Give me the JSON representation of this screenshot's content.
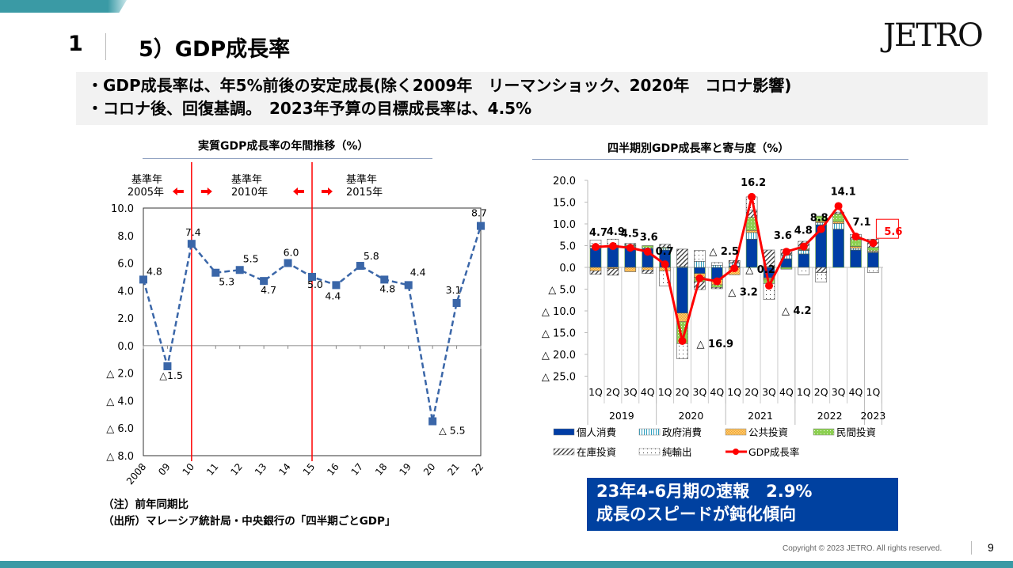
{
  "header": {
    "section_number": "1",
    "title": "5）GDP成長率",
    "logo": "JETRO"
  },
  "summary": {
    "line1": "・GDP成長率は、年5%前後の安定成長(除く2009年　リーマンショック、2020年　コロナ影響)",
    "line2": "・コロナ後、回復基調。　2023年予算の目標成長率は、4.5%"
  },
  "chart_data": [
    {
      "type": "line",
      "title": "実質GDP成長率の年間推移（%）",
      "categories": [
        "2008",
        "09",
        "10",
        "11",
        "12",
        "13",
        "14",
        "15",
        "16",
        "17",
        "18",
        "19",
        "20",
        "21",
        "22"
      ],
      "values": [
        4.8,
        -1.5,
        7.4,
        5.3,
        5.5,
        4.7,
        6.0,
        5.0,
        4.4,
        5.8,
        4.8,
        4.4,
        -5.5,
        3.1,
        8.7
      ],
      "data_labels": [
        "4.8",
        "△1.5",
        "7.4",
        "5.3",
        "5.5",
        "4.7",
        "6.0",
        "5.0",
        "4.4",
        "5.8",
        "4.8",
        "4.4",
        "△ 5.5",
        "3.1",
        "8.7"
      ],
      "ylim": [
        -8,
        10
      ],
      "yticks": [
        {
          "v": 10,
          "t": "10.0"
        },
        {
          "v": 8,
          "t": "8.0"
        },
        {
          "v": 6,
          "t": "6.0"
        },
        {
          "v": 4,
          "t": "4.0"
        },
        {
          "v": 2,
          "t": "2.0"
        },
        {
          "v": 0,
          "t": "0.0"
        },
        {
          "v": -2,
          "t": "△ 2.0"
        },
        {
          "v": -4,
          "t": "△ 4.0"
        },
        {
          "v": -6,
          "t": "△ 6.0"
        },
        {
          "v": -8,
          "t": "△ 8.0"
        }
      ],
      "line_color": "#3a66a8",
      "line_style": "dashed",
      "marker": "square",
      "base_year_dividers": [
        "10",
        "15"
      ],
      "base_year_labels": [
        {
          "l1": "基準年",
          "l2": "2005年"
        },
        {
          "l1": "基準年",
          "l2": "2010年"
        },
        {
          "l1": "基準年",
          "l2": "2015年"
        }
      ]
    },
    {
      "type": "bar",
      "stacked": true,
      "title": "四半期別GDP成長率と寄与度（%）",
      "categories": [
        "1Q",
        "2Q",
        "3Q",
        "4Q",
        "1Q",
        "2Q",
        "3Q",
        "4Q",
        "1Q",
        "2Q",
        "3Q",
        "4Q",
        "1Q",
        "2Q",
        "3Q",
        "4Q",
        "1Q"
      ],
      "years": [
        {
          "label": "2019",
          "span": 4
        },
        {
          "label": "2020",
          "span": 4
        },
        {
          "label": "2021",
          "span": 4
        },
        {
          "label": "2022",
          "span": 4
        },
        {
          "label": "2023",
          "span": 1
        }
      ],
      "ylim": [
        -25,
        20
      ],
      "yticks": [
        {
          "v": 20,
          "t": "20.0"
        },
        {
          "v": 15,
          "t": "15.0"
        },
        {
          "v": 10,
          "t": "10.0"
        },
        {
          "v": 5,
          "t": "5.0"
        },
        {
          "v": 0,
          "t": "0.0"
        },
        {
          "v": -5,
          "t": "△ 5.0"
        },
        {
          "v": -10,
          "t": "△ 10.0"
        },
        {
          "v": -15,
          "t": "△ 15.0"
        },
        {
          "v": -20,
          "t": "△ 20.0"
        },
        {
          "v": -25,
          "t": "△ 25.0"
        }
      ],
      "series": [
        {
          "name": "個人消費",
          "color": "#003da5",
          "fill": "solid",
          "values": [
            4.4,
            4.5,
            4.6,
            4.3,
            4.0,
            -10.5,
            -1.4,
            -2.8,
            0.3,
            6.5,
            -2.4,
            2.0,
            3.1,
            9.8,
            8.8,
            4.0,
            3.4
          ]
        },
        {
          "name": "政府消費",
          "color": "#2fa0c0",
          "fill": "vlines",
          "values": [
            0.4,
            0.3,
            0.3,
            0.2,
            0.4,
            0.2,
            1.4,
            0.5,
            0.7,
            1.5,
            0.2,
            0.8,
            0.8,
            0.5,
            1.3,
            0.4,
            0.2
          ]
        },
        {
          "name": "公共投資",
          "color": "#f5a623",
          "fill": "checker",
          "values": [
            -0.8,
            -0.3,
            -1.0,
            -0.6,
            -0.8,
            -2.0,
            -0.9,
            -1.2,
            -1.7,
            0.5,
            -0.3,
            0.1,
            0.1,
            0.3,
            0.4,
            0.4,
            0.2
          ]
        },
        {
          "name": "民間投資",
          "color": "#8cd050",
          "fill": "dots",
          "values": [
            0.2,
            0.3,
            0.2,
            0.5,
            0.2,
            -5.0,
            -1.0,
            -0.6,
            0.1,
            3.0,
            -1.0,
            -0.4,
            0.2,
            1.2,
            1.8,
            1.6,
            0.8
          ]
        },
        {
          "name": "在庫投資",
          "color": "#333333",
          "fill": "hatch",
          "values": [
            -0.8,
            -1.5,
            0.4,
            -0.8,
            0.7,
            4.0,
            -1.8,
            -0.3,
            0.5,
            1.7,
            3.8,
            1.2,
            1.8,
            -1.2,
            0.4,
            1.2,
            1.9
          ]
        },
        {
          "name": "純輸出",
          "color": "#333333",
          "fill": "sparse-dots",
          "values": [
            1.3,
            1.4,
            0.0,
            0.0,
            -3.5,
            -3.5,
            2.5,
            0.6,
            0.0,
            3.0,
            -3.7,
            0.0,
            -1.7,
            -2.2,
            0.0,
            0.0,
            -1.2
          ]
        }
      ],
      "line": {
        "name": "GDP成長率",
        "color": "#ff0000",
        "values": [
          4.7,
          4.9,
          4.5,
          3.6,
          0.7,
          -16.9,
          -2.5,
          -3.2,
          -0.2,
          16.2,
          -4.2,
          3.6,
          4.8,
          8.8,
          14.1,
          7.1,
          5.6
        ],
        "data_labels": [
          "4.7",
          "4.9",
          "4.5",
          "3.6",
          "0.7",
          "△ 16.9",
          "△ 2.5",
          "△ 3.2",
          "△ 0.2",
          "16.2",
          "△ 4.2",
          "3.6",
          "4.8",
          "8.8",
          "14.1",
          "7.1",
          "5.6"
        ]
      },
      "legend_placement": "bottom"
    }
  ],
  "notes": {
    "note": "（注）前年同期比",
    "source": "（出所）マレーシア統計局・中央銀行の「四半期ごとGDP」"
  },
  "callout": {
    "line1": "23年4-6月期の速報　2.9%",
    "line2": "成長のスピードが鈍化傾向",
    "color": "#0041a0"
  },
  "footer": {
    "copyright": "Copyright © 2023 JETRO. All rights reserved.",
    "page": "9"
  }
}
